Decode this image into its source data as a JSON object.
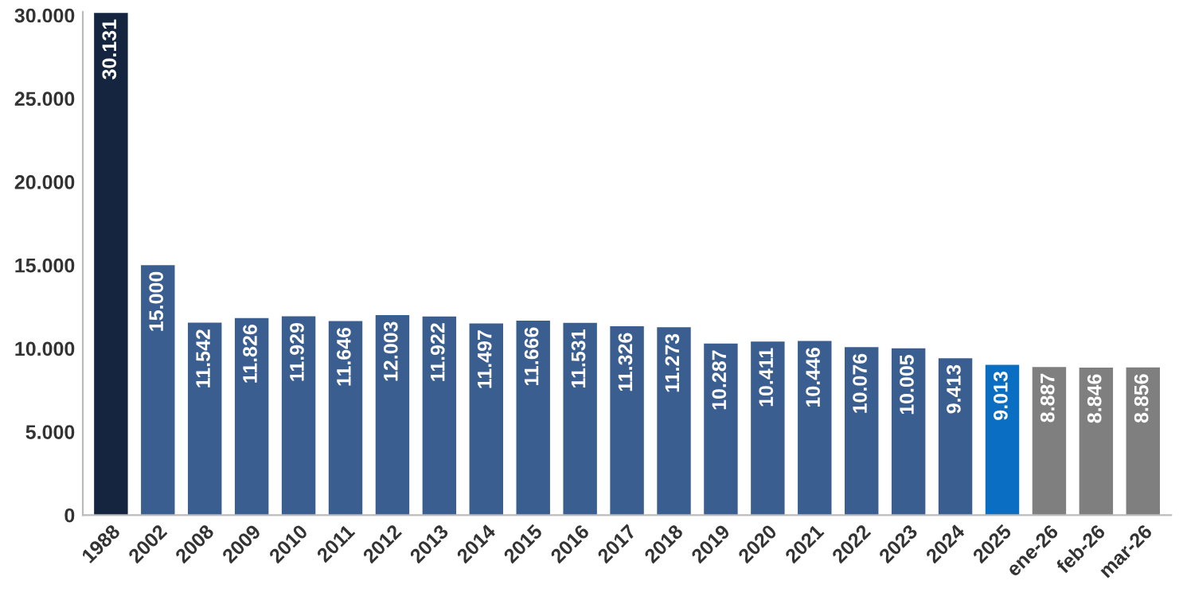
{
  "chart_data": {
    "type": "bar",
    "categories": [
      "1988",
      "2002",
      "2008",
      "2009",
      "2010",
      "2011",
      "2012",
      "2013",
      "2014",
      "2015",
      "2016",
      "2017",
      "2018",
      "2019",
      "2020",
      "2021",
      "2022",
      "2023",
      "2024",
      "2025",
      "ene-26",
      "feb-26",
      "mar-26"
    ],
    "values": [
      30131,
      15000,
      11542,
      11826,
      11929,
      11646,
      12003,
      11922,
      11497,
      11666,
      11531,
      11326,
      11273,
      10287,
      10411,
      10446,
      10076,
      10005,
      9413,
      9013,
      8887,
      8846,
      8856
    ],
    "value_labels": [
      "30.131",
      "15.000",
      "11.542",
      "11.826",
      "11.929",
      "11.646",
      "12.003",
      "11.922",
      "11.497",
      "11.666",
      "11.531",
      "11.326",
      "11.273",
      "10.287",
      "10.411",
      "10.446",
      "10.076",
      "10.005",
      "9.413",
      "9.013",
      "8.887",
      "8.846",
      "8.856"
    ],
    "colors": [
      "#15243f",
      "#3b5e91",
      "#3b5e91",
      "#3b5e91",
      "#3b5e91",
      "#3b5e91",
      "#3b5e91",
      "#3b5e91",
      "#3b5e91",
      "#3b5e91",
      "#3b5e91",
      "#3b5e91",
      "#3b5e91",
      "#3b5e91",
      "#3b5e91",
      "#3b5e91",
      "#3b5e91",
      "#3b5e91",
      "#3b5e91",
      "#0a6fc2",
      "#7f7f7f",
      "#7f7f7f",
      "#7f7f7f"
    ],
    "ylim": [
      0,
      30200
    ],
    "yticks": [
      {
        "value": 0,
        "label": "0"
      },
      {
        "value": 5000,
        "label": "5.000"
      },
      {
        "value": 10000,
        "label": "10.000"
      },
      {
        "value": 15000,
        "label": "15.000"
      },
      {
        "value": 20000,
        "label": "20.000"
      },
      {
        "value": 25000,
        "label": "25.000"
      },
      {
        "value": 30000,
        "label": "30.000"
      }
    ],
    "grid": false,
    "legend": false
  }
}
